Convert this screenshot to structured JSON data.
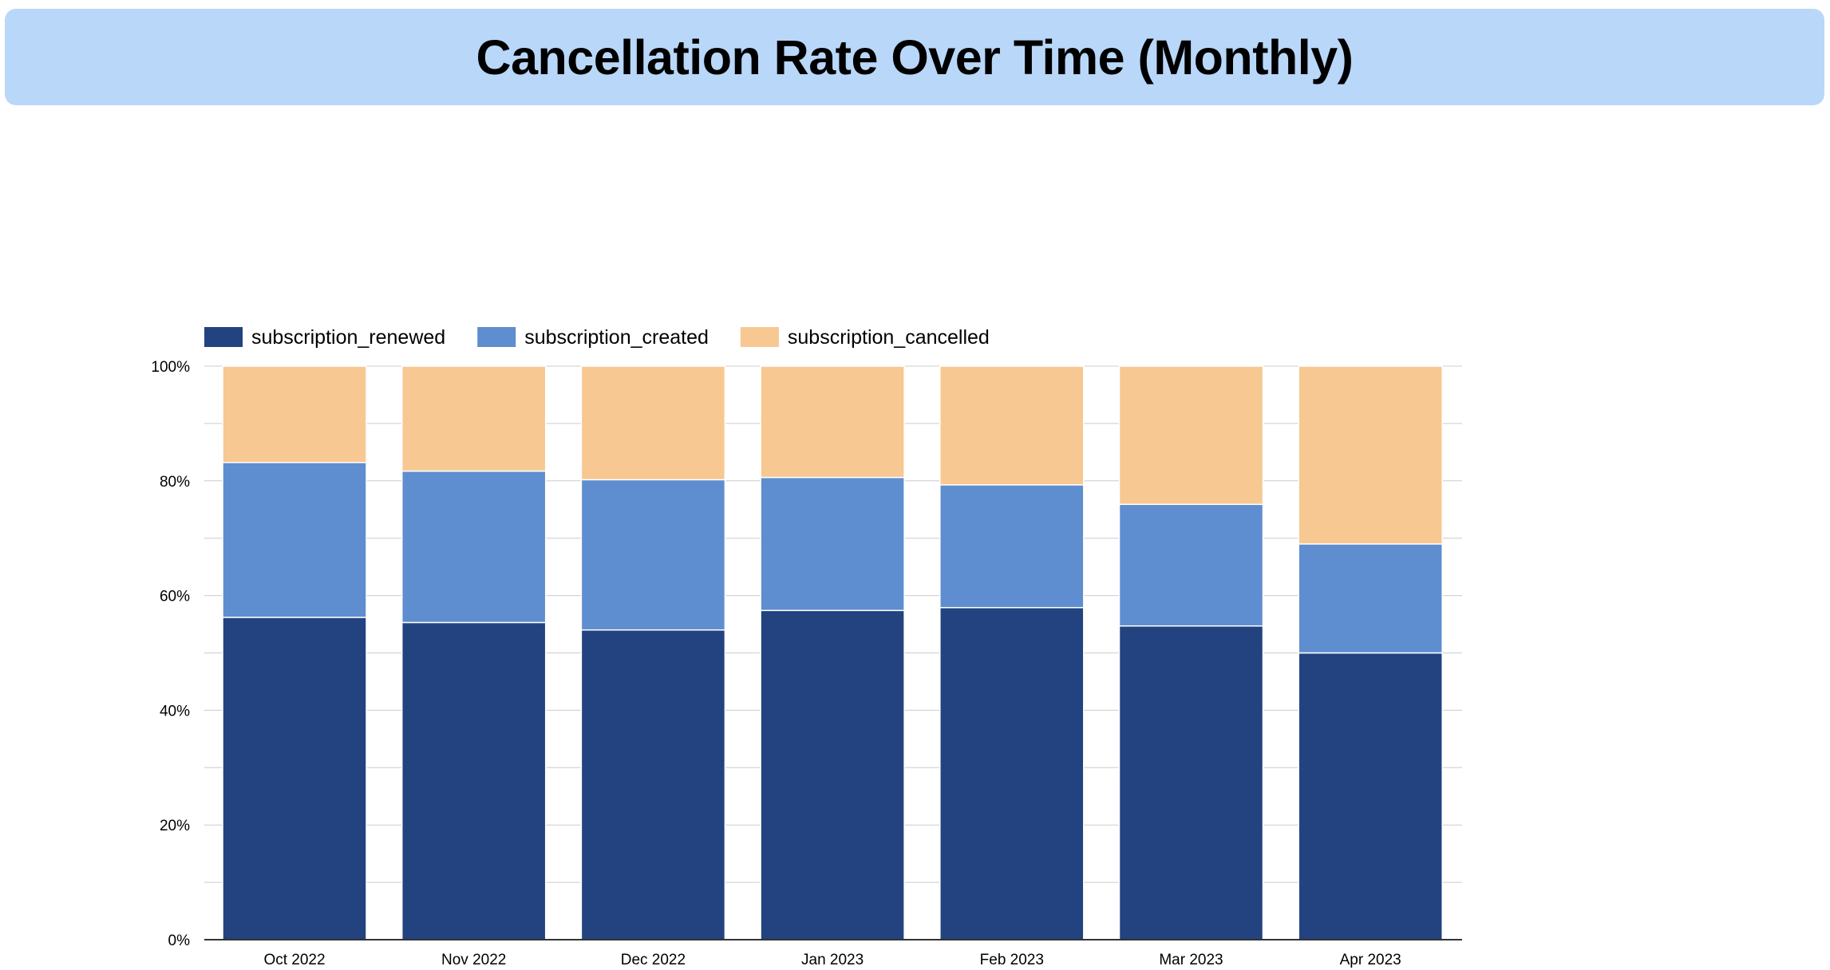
{
  "chart_data": {
    "type": "bar",
    "stacked": true,
    "percent_stacked": true,
    "title": "Cancellation Rate Over Time (Monthly)",
    "xlabel": "",
    "ylabel": "",
    "categories": [
      "Oct 2022",
      "Nov 2022",
      "Dec 2022",
      "Jan 2023",
      "Feb 2023",
      "Mar 2023",
      "Apr 2023"
    ],
    "series": [
      {
        "name": "subscription_renewed",
        "color": "#22437f",
        "values": [
          56.2,
          55.3,
          54.0,
          57.4,
          57.9,
          54.7,
          50.0
        ]
      },
      {
        "name": "subscription_created",
        "color": "#5e8ecf",
        "values": [
          27.0,
          26.4,
          26.2,
          23.2,
          21.4,
          21.2,
          19.0
        ]
      },
      {
        "name": "subscription_cancelled",
        "color": "#f7c891",
        "values": [
          16.8,
          18.3,
          19.8,
          19.4,
          20.7,
          24.1,
          31.0
        ]
      }
    ],
    "ylim": [
      0,
      100
    ],
    "yticks": [
      0,
      20,
      40,
      60,
      80,
      100
    ],
    "ytick_labels": [
      "0%",
      "20%",
      "40%",
      "60%",
      "80%",
      "100%"
    ],
    "grid": true,
    "legend_position": "top-left"
  }
}
